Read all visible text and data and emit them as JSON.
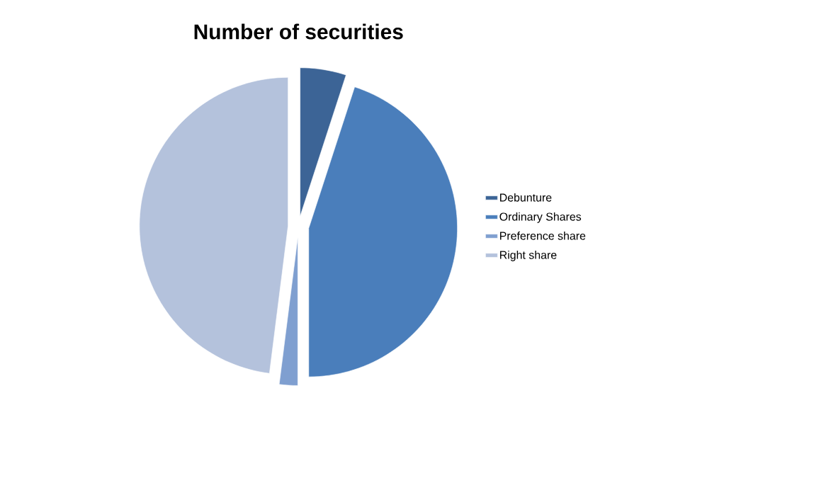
{
  "chart_data": {
    "type": "pie",
    "title": "Number of securities",
    "categories": [
      "Debunture",
      "Ordinary Shares",
      "Preference share",
      "Right share"
    ],
    "values": [
      5,
      45,
      2,
      48
    ],
    "colors": [
      "#3c6496",
      "#4a7ebb",
      "#7f9fd0",
      "#b4c2dc"
    ],
    "legend": "right"
  }
}
